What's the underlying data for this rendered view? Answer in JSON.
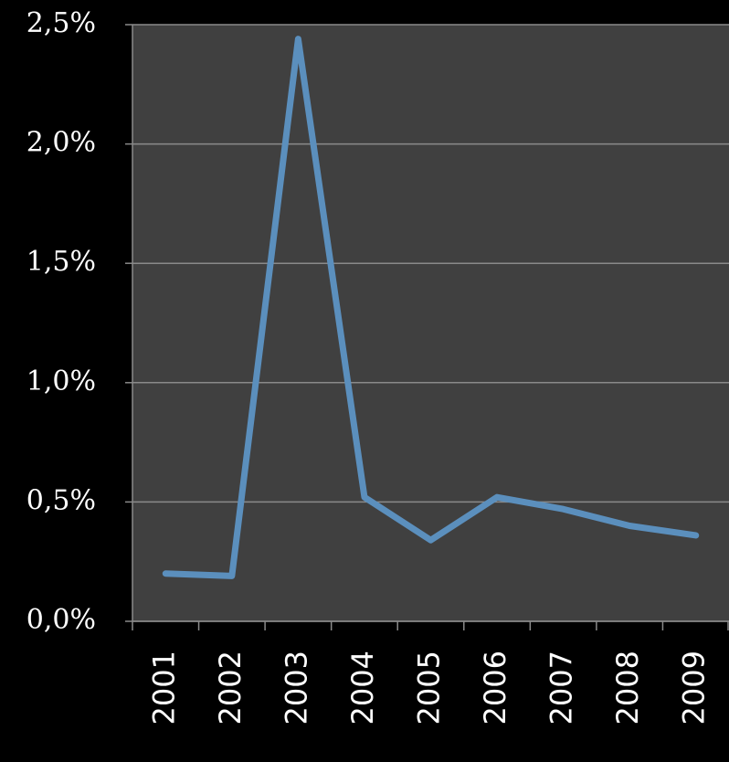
{
  "chart_data": {
    "type": "line",
    "categories": [
      "2001",
      "2002",
      "2003",
      "2004",
      "2005",
      "2006",
      "2007",
      "2008",
      "2009"
    ],
    "series": [
      {
        "color": "#5b8fbd",
        "values": [
          0.2,
          0.19,
          2.44,
          0.52,
          0.34,
          0.52,
          0.47,
          0.4,
          0.36
        ]
      }
    ],
    "ylim": [
      0,
      2.5
    ],
    "yticks": [
      {
        "value": 0,
        "label": "0,0%"
      },
      {
        "value": 0.5,
        "label": "0,5%"
      },
      {
        "value": 1,
        "label": "1,0%"
      },
      {
        "value": 1.5,
        "label": "1,5%"
      },
      {
        "value": 2,
        "label": "2,0%"
      },
      {
        "value": 2.5,
        "label": "2,5%"
      }
    ],
    "grid": true
  }
}
